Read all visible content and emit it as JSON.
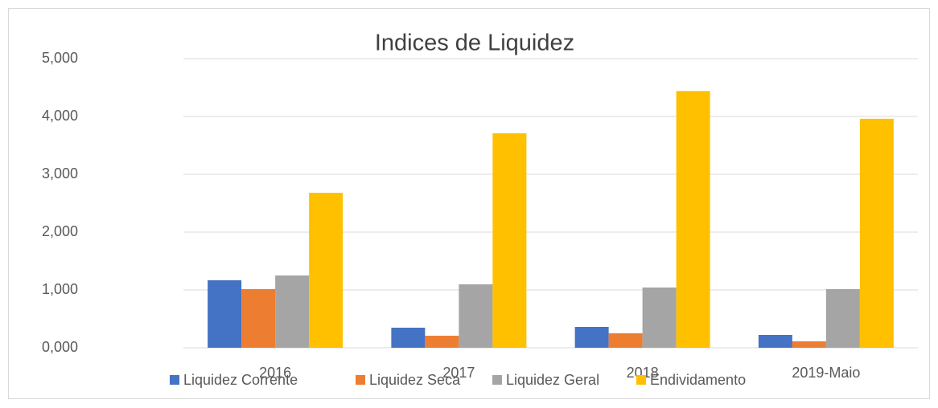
{
  "chart_data": {
    "type": "bar",
    "title": "Indices de Liquidez",
    "categories": [
      "2016",
      "2017",
      "2018",
      "2019-Maio"
    ],
    "series": [
      {
        "name": "Liquidez Corrente",
        "color": "#4472c4",
        "values": [
          1.167,
          0.347,
          0.361,
          0.222
        ]
      },
      {
        "name": "Liquidez Seca",
        "color": "#ed7d31",
        "values": [
          1.014,
          0.208,
          0.25,
          0.111
        ]
      },
      {
        "name": "Liquidez Geral",
        "color": "#a5a5a5",
        "values": [
          1.25,
          1.097,
          1.042,
          1.014
        ]
      },
      {
        "name": "Endividamento",
        "color": "#ffc000",
        "values": [
          2.68,
          3.71,
          4.44,
          3.96
        ]
      }
    ],
    "ylim": [
      0,
      5
    ],
    "yticks": [
      {
        "value": 0,
        "label": "0,000"
      },
      {
        "value": 1,
        "label": "1,000"
      },
      {
        "value": 2,
        "label": "2,000"
      },
      {
        "value": 3,
        "label": "3,000"
      },
      {
        "value": 4,
        "label": "4,000"
      },
      {
        "value": 5,
        "label": "5,000"
      }
    ],
    "grid": true,
    "legend": "bottom"
  }
}
